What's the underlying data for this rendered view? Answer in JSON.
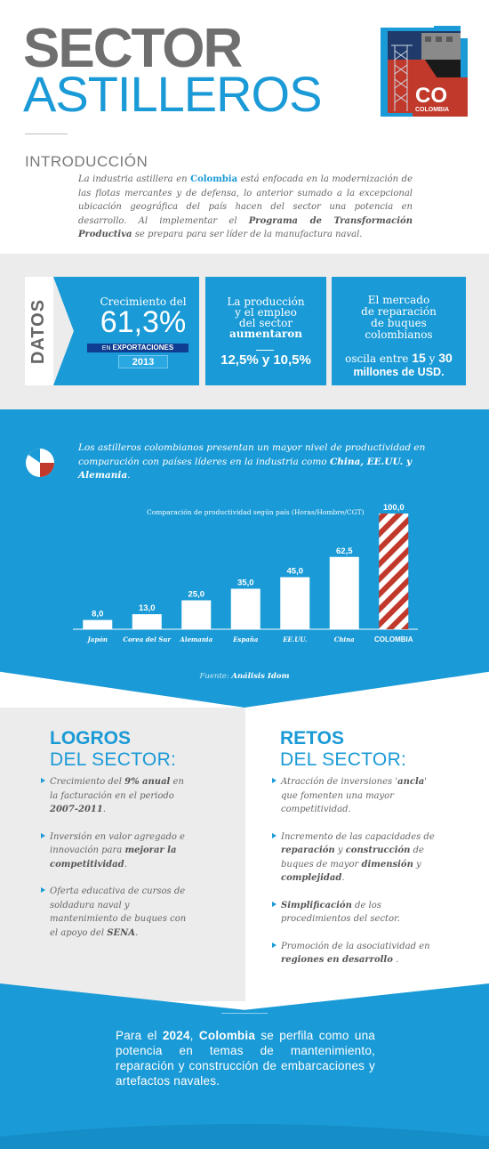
{
  "header": {
    "title_line1": "SECTOR",
    "title_line2": "ASTILLEROS",
    "logo_text_big": "CO",
    "logo_text_small": "COLOMBIA"
  },
  "intro": {
    "heading": "INTRODUCCIÓN",
    "p1": "La industria astillera en ",
    "p_colombia": "Colombia",
    "p2": " está enfocada en la modernización de las flotas mercantes y de defensa, lo anterior sumado a la excepcional ubicación geográfica del país hacen del sector una potencia en desarrollo. Al implementar el ",
    "p_programa": "Programa de Transformación Productiva",
    "p3": " se prepara para ser líder de la manufactura naval."
  },
  "datos": {
    "tab_label": "DATOS",
    "box1": {
      "label": "Crecimiento del",
      "value": "61,3%",
      "band_en": "EN ",
      "band_export": "EXPORTACIONES",
      "year": "2013"
    },
    "box2": {
      "l1": "La producción",
      "l2": "y el empleo",
      "l3": "del sector",
      "l4": "aumentaron",
      "value": "12,5% y 10,5%"
    },
    "box3": {
      "l1": "El mercado",
      "l2": "de reparación",
      "l3": "de buques",
      "l4": "colombianos",
      "l5a": "oscila entre ",
      "n1": "15",
      "l5b": " y ",
      "n2": "30",
      "l6": "millones de USD."
    }
  },
  "chart_section": {
    "desc1": "Los astilleros colombianos presentan un mayor nivel de productividad en comparación con países líderes en la industria como ",
    "desc_bold": "China, EE.UU. y Alemania",
    "desc2": ".",
    "fuente_label": "Fuente: ",
    "fuente_value": "Análisis Idom"
  },
  "chart_data": {
    "type": "bar",
    "title": "Comparación de productividad según país (Horas/Hombre/CGT)",
    "categories": [
      "Japón",
      "Corea del Sur",
      "Alemania",
      "España",
      "EE.UU.",
      "China",
      "COLOMBIA"
    ],
    "values": [
      8.0,
      13.0,
      25.0,
      35.0,
      45.0,
      62.5,
      100.0
    ],
    "value_labels": [
      "8,0",
      "13,0",
      "25,0",
      "35,0",
      "45,0",
      "62,5",
      "100,0"
    ],
    "highlight": "COLOMBIA",
    "ylim": [
      0,
      100
    ],
    "colors": {
      "bar": "#ffffff",
      "highlight_stripe": "#c0392b"
    }
  },
  "logros": {
    "title_a": "LOGROS",
    "title_b": "DEL SECTOR:",
    "i1a": "Crecimiento del ",
    "i1b": "9% anual",
    "i1c": " en la facturación en el periodo ",
    "i1d": "2007-2011",
    "i1e": ".",
    "i2a": "Inversión en valor agregado e innovación para ",
    "i2b": "mejorar la competitividad",
    "i2c": ".",
    "i3a": "Oferta educativa de cursos de soldadura naval y mantenimiento de buques con el apoyo del ",
    "i3b": "SENA",
    "i3c": "."
  },
  "retos": {
    "title_a": "RETOS",
    "title_b": "DEL SECTOR:",
    "i1a": "Atracción de inversiones '",
    "i1b": "ancla",
    "i1c": "' que fomenten una mayor competitividad.",
    "i2a": "Incremento de las capacidades de ",
    "i2b": "reparación",
    "i2c": " y ",
    "i2d": "construcción",
    "i2e": " de buques de mayor ",
    "i2f": "dimensión",
    "i2g": " y ",
    "i2h": "complejidad",
    "i2i": ".",
    "i3a": "Simplificación",
    "i3b": " de los procedimientos del sector.",
    "i4a": "Promoción de la asociatividad en ",
    "i4b": "regiones en desarrollo",
    "i4c": " ."
  },
  "footer": {
    "t1": "Para el ",
    "year": "2024",
    "t2": ", ",
    "country": "Colombia",
    "t3": " se perfila como una potencia en temas de mantenimiento, reparación y construcción de embarcaciones y artefactos navales."
  },
  "colors": {
    "accent": "#1a9ad6",
    "dark_blue": "#0f3d8f",
    "gray_bg": "#ececec",
    "red": "#c0392b"
  }
}
